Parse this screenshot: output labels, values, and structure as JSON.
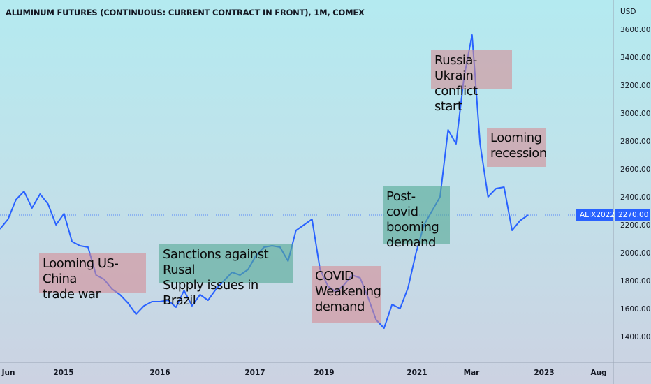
{
  "title": "ALUMINUM FUTURES (CONTINUOUS: CURRENT CONTRACT IN FRONT), 1M, COMEX",
  "colors": {
    "line": "#2962ff",
    "badge": "#2962ff",
    "ann_red": "#d68992",
    "ann_green": "#56aa96"
  },
  "chart_data": {
    "type": "line",
    "title": "ALUMINUM FUTURES (CONTINUOUS: CURRENT CONTRACT IN FRONT), 1M, COMEX",
    "y_unit": "USD",
    "ylim": [
      1300,
      3700
    ],
    "y_ticks": [
      "1400.00",
      "1600.00",
      "1800.00",
      "2000.00",
      "2200.00",
      "2400.00",
      "2600.00",
      "2800.00",
      "3000.00",
      "3200.00",
      "3400.00",
      "3600.00"
    ],
    "x_ticks": [
      "Jun",
      "2015",
      "2016",
      "2017",
      "2019",
      "2021",
      "Mar",
      "2023",
      "Aug"
    ],
    "grid": false,
    "series": [
      {
        "name": "ALIX2022",
        "values": [
          2170,
          2240,
          2380,
          2440,
          2320,
          2420,
          2350,
          2200,
          2280,
          2080,
          2050,
          2040,
          1840,
          1810,
          1740,
          1700,
          1640,
          1560,
          1620,
          1650,
          1650,
          1660,
          1610,
          1730,
          1620,
          1700,
          1660,
          1740,
          1800,
          1860,
          1840,
          1880,
          1980,
          2040,
          2050,
          2040,
          1940,
          2160,
          2200,
          2240,
          1880,
          1760,
          1720,
          1770,
          1840,
          1820,
          1680,
          1520,
          1460,
          1630,
          1600,
          1750,
          2000,
          2200,
          2300,
          2400,
          2880,
          2780,
          3260,
          3560,
          2780,
          2400,
          2460,
          2470,
          2160,
          2230,
          2270
        ]
      }
    ],
    "last_value_label": "ALIX2022",
    "last_value": "2270.00",
    "annotations": [
      "Looming US-China\ntrade war",
      "Sanctions against Rusal\nSupply issues in Brazil",
      "COVID\nWeakening\ndemand",
      "Post-covid\nbooming\ndemand",
      "Russia-Ukrain\nconflict start",
      "Looming\nrecession"
    ]
  }
}
